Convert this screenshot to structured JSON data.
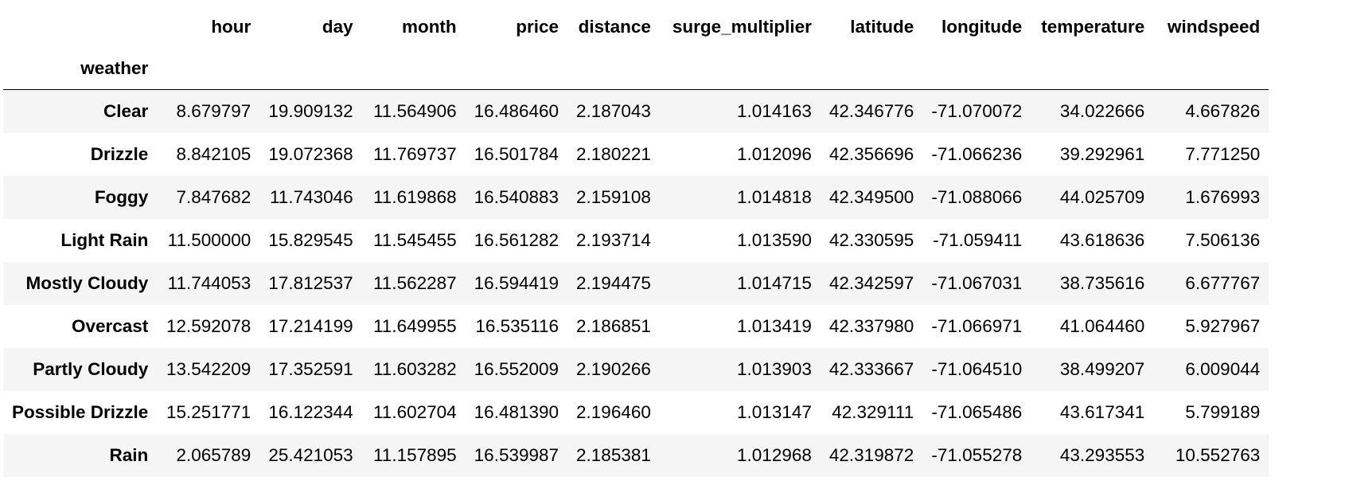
{
  "table": {
    "index_name": "weather",
    "columns": [
      "hour",
      "day",
      "month",
      "price",
      "distance",
      "surge_multiplier",
      "latitude",
      "longitude",
      "temperature",
      "windspeed"
    ],
    "rows": [
      {
        "label": "Clear",
        "values": [
          "8.679797",
          "19.909132",
          "11.564906",
          "16.486460",
          "2.187043",
          "1.014163",
          "42.346776",
          "-71.070072",
          "34.022666",
          "4.667826"
        ]
      },
      {
        "label": "Drizzle",
        "values": [
          "8.842105",
          "19.072368",
          "11.769737",
          "16.501784",
          "2.180221",
          "1.012096",
          "42.356696",
          "-71.066236",
          "39.292961",
          "7.771250"
        ]
      },
      {
        "label": "Foggy",
        "values": [
          "7.847682",
          "11.743046",
          "11.619868",
          "16.540883",
          "2.159108",
          "1.014818",
          "42.349500",
          "-71.088066",
          "44.025709",
          "1.676993"
        ]
      },
      {
        "label": "Light Rain",
        "values": [
          "11.500000",
          "15.829545",
          "11.545455",
          "16.561282",
          "2.193714",
          "1.013590",
          "42.330595",
          "-71.059411",
          "43.618636",
          "7.506136"
        ]
      },
      {
        "label": "Mostly Cloudy",
        "values": [
          "11.744053",
          "17.812537",
          "11.562287",
          "16.594419",
          "2.194475",
          "1.014715",
          "42.342597",
          "-71.067031",
          "38.735616",
          "6.677767"
        ]
      },
      {
        "label": "Overcast",
        "values": [
          "12.592078",
          "17.214199",
          "11.649955",
          "16.535116",
          "2.186851",
          "1.013419",
          "42.337980",
          "-71.066971",
          "41.064460",
          "5.927967"
        ]
      },
      {
        "label": "Partly Cloudy",
        "values": [
          "13.542209",
          "17.352591",
          "11.603282",
          "16.552009",
          "2.190266",
          "1.013903",
          "42.333667",
          "-71.064510",
          "38.499207",
          "6.009044"
        ]
      },
      {
        "label": "Possible Drizzle",
        "values": [
          "15.251771",
          "16.122344",
          "11.602704",
          "16.481390",
          "2.196460",
          "1.013147",
          "42.329111",
          "-71.065486",
          "43.617341",
          "5.799189"
        ]
      },
      {
        "label": "Rain",
        "values": [
          "2.065789",
          "25.421053",
          "11.157895",
          "16.539987",
          "2.185381",
          "1.012968",
          "42.319872",
          "-71.055278",
          "43.293553",
          "10.552763"
        ]
      }
    ]
  }
}
